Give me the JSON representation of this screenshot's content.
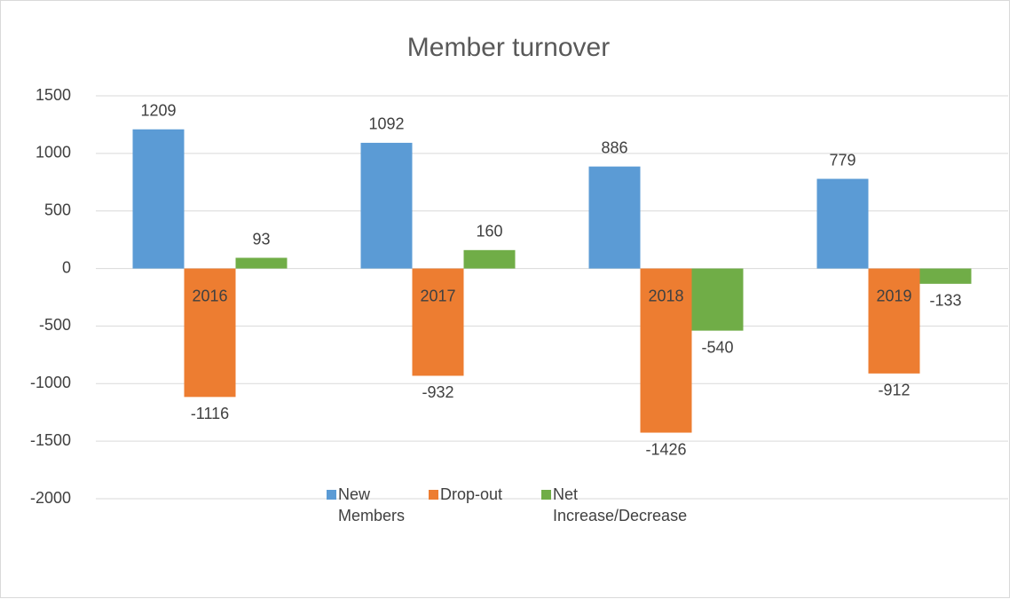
{
  "chart_data": {
    "type": "bar",
    "title": "Member turnover",
    "categories": [
      "2016",
      "2017",
      "2018",
      "2019"
    ],
    "series": [
      {
        "name": "New Members",
        "color": "#5b9bd5",
        "values": [
          1209,
          1092,
          886,
          779
        ]
      },
      {
        "name": "Drop-out",
        "color": "#ed7d31",
        "values": [
          -1116,
          -932,
          -1426,
          -912
        ]
      },
      {
        "name": "Net Increase/Decrease",
        "color": "#70ad47",
        "values": [
          93,
          160,
          -540,
          -133
        ]
      }
    ],
    "ylim": [
      -2000,
      1500
    ],
    "yticks": [
      -2000,
      -1500,
      -1000,
      -500,
      0,
      500,
      1000,
      1500
    ],
    "grid": true,
    "legend": "bottom"
  }
}
